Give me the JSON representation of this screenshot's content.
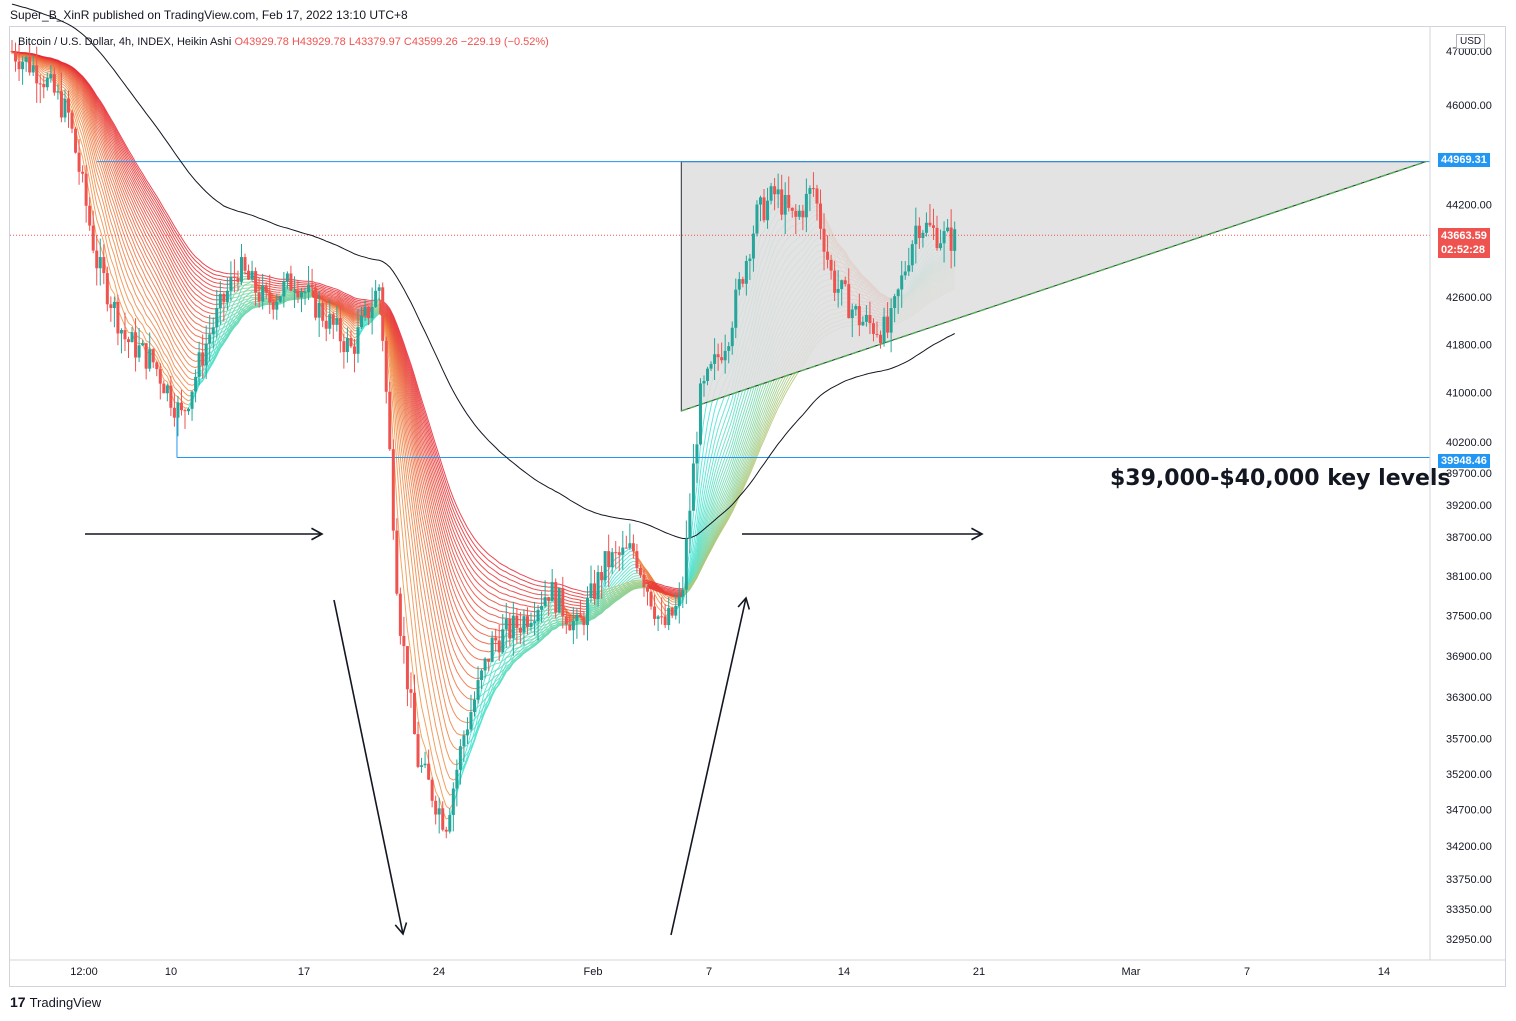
{
  "header": {
    "published": "Super_B_XinR published on TradingView.com, Feb 17, 2022 13:10 UTC+8"
  },
  "legend": {
    "symbol": "Bitcoin / U.S. Dollar, 4h, INDEX, Heikin Ashi",
    "open": "O43929.78",
    "high": "H43929.78",
    "low": "L43379.97",
    "close": "C43599.26",
    "change": "−229.19 (−0.52%)"
  },
  "price_axis": {
    "currency": "USD",
    "high_tag": "44969.31",
    "low_tag": "39948.46",
    "last_price": "43663.59",
    "countdown": "02:52:28"
  },
  "annotation": "$39,000-$40,000 key levels",
  "footer": {
    "brand": "TradingView"
  },
  "colors": {
    "up": "#26a69a",
    "down": "#ef5350",
    "level_line": "#2196f3",
    "triangle_fill": "#e0e0e0",
    "sma": "#131722"
  },
  "chart_data": {
    "type": "candlestick",
    "x_ticks": [
      "12:00",
      "10",
      "17",
      "24",
      "Feb",
      "7",
      "14",
      "21",
      "Mar",
      "7",
      "14"
    ],
    "y_ticks": [
      47000,
      46000,
      44200,
      42600,
      41800,
      41000,
      40200,
      39700,
      39200,
      38700,
      38100,
      37500,
      36900,
      36300,
      35700,
      35200,
      34700,
      34200,
      33750,
      33350,
      32950
    ],
    "ylim": [
      32700,
      47400
    ],
    "y_scale": "log",
    "levels": [
      44969.31,
      39948.46
    ],
    "last_price": 43663.59,
    "price_path": [
      [
        0,
        47000
      ],
      [
        3,
        46600
      ],
      [
        6,
        45800
      ],
      [
        9,
        43200
      ],
      [
        12,
        41900
      ],
      [
        15,
        41500
      ],
      [
        18,
        40600
      ],
      [
        21,
        42000
      ],
      [
        24,
        43100
      ],
      [
        27,
        42500
      ],
      [
        30,
        42900
      ],
      [
        33,
        42300
      ],
      [
        36,
        41700
      ],
      [
        39,
        42800
      ],
      [
        41,
        37600
      ],
      [
        43,
        35400
      ],
      [
        46,
        34500
      ],
      [
        48,
        35800
      ],
      [
        51,
        37100
      ],
      [
        54,
        37400
      ],
      [
        57,
        37900
      ],
      [
        60,
        37300
      ],
      [
        63,
        38300
      ],
      [
        66,
        38500
      ],
      [
        69,
        37300
      ],
      [
        71,
        37700
      ],
      [
        73,
        40900
      ],
      [
        76,
        42000
      ],
      [
        79,
        44000
      ],
      [
        81,
        44400
      ],
      [
        83,
        43900
      ],
      [
        85,
        44500
      ],
      [
        87,
        42900
      ],
      [
        90,
        42200
      ],
      [
        93,
        42000
      ],
      [
        96,
        43900
      ],
      [
        99,
        43600
      ],
      [
        100,
        43600
      ]
    ]
  }
}
